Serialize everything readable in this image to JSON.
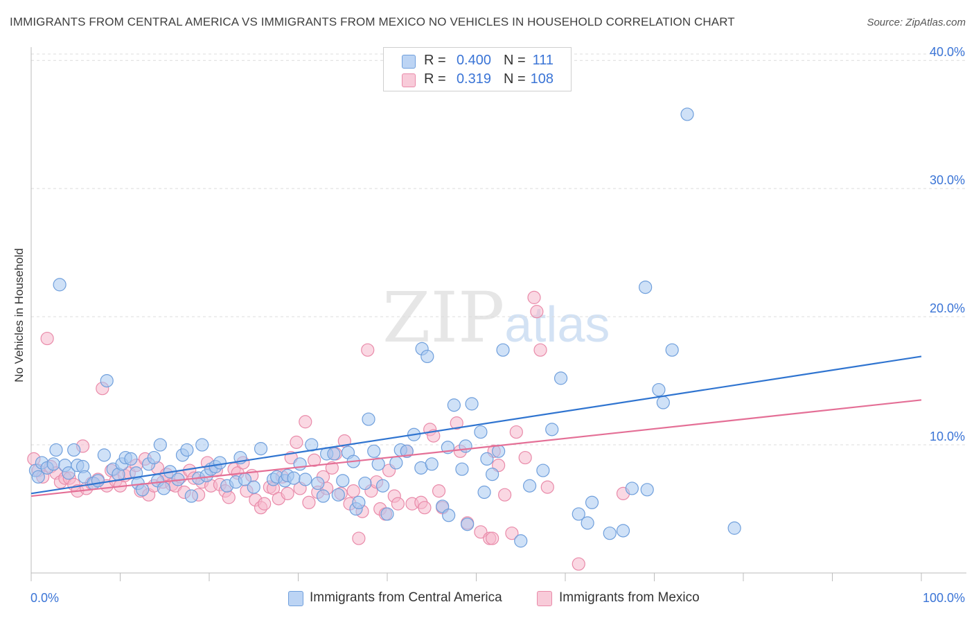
{
  "title": "IMMIGRANTS FROM CENTRAL AMERICA VS IMMIGRANTS FROM MEXICO NO VEHICLES IN HOUSEHOLD CORRELATION CHART",
  "source": "Source: ZipAtlas.com",
  "watermark": {
    "zip": "ZIP",
    "atlas": "atlas"
  },
  "legend_top": {
    "rows": [
      {
        "r_label": "R =",
        "r_value": "0.400",
        "n_label": "N =",
        "n_value": "111"
      },
      {
        "r_label": "R =",
        "r_value": "0.319",
        "n_label": "N =",
        "n_value": "108"
      }
    ]
  },
  "legend_bottom": [
    "Immigrants from Central America",
    "Immigrants from Mexico"
  ],
  "colors": {
    "blue_fill": "#a8c8f0",
    "blue_stroke": "#6f9fdc",
    "blue_line": "#2f74d0",
    "pink_fill": "#f5b8cc",
    "pink_stroke": "#e98aa9",
    "pink_line": "#e46f96",
    "axis_text": "#3a74d6",
    "grid": "#dcdcdc"
  },
  "chart_data": {
    "type": "scatter",
    "xlabel": "",
    "ylabel": "No Vehicles in Household",
    "x_tick_labels": [
      "0.0%",
      "100.0%"
    ],
    "y_tick_labels": [
      "10.0%",
      "20.0%",
      "30.0%",
      "40.0%"
    ],
    "xlim": [
      0,
      100
    ],
    "ylim": [
      0,
      40.5
    ],
    "y_ticks": [
      10,
      20,
      30,
      40
    ],
    "grid": true,
    "legend_placement": "top-center",
    "series": [
      {
        "name": "Immigrants from Central America",
        "r": 0.4,
        "n": 111,
        "trend": {
          "x": [
            0,
            100
          ],
          "y": [
            6.2,
            16.9
          ]
        },
        "points": [
          [
            0.5,
            8.0
          ],
          [
            0.8,
            7.5
          ],
          [
            1.2,
            8.6
          ],
          [
            1.8,
            8.2
          ],
          [
            2.5,
            8.5
          ],
          [
            2.8,
            9.6
          ],
          [
            3.2,
            22.5
          ],
          [
            3.8,
            8.4
          ],
          [
            4.2,
            7.8
          ],
          [
            4.8,
            9.6
          ],
          [
            5.2,
            8.4
          ],
          [
            5.8,
            8.3
          ],
          [
            6.0,
            7.5
          ],
          [
            7.0,
            7.0
          ],
          [
            7.5,
            7.2
          ],
          [
            8.2,
            9.2
          ],
          [
            8.5,
            15.0
          ],
          [
            9.2,
            8.1
          ],
          [
            9.8,
            7.7
          ],
          [
            10.2,
            8.5
          ],
          [
            10.6,
            9.0
          ],
          [
            11.2,
            8.9
          ],
          [
            11.8,
            7.8
          ],
          [
            12.0,
            7.0
          ],
          [
            12.5,
            6.5
          ],
          [
            13.2,
            8.5
          ],
          [
            13.8,
            9.0
          ],
          [
            14.2,
            7.2
          ],
          [
            14.5,
            10.0
          ],
          [
            14.9,
            6.6
          ],
          [
            15.6,
            7.9
          ],
          [
            16.5,
            7.3
          ],
          [
            17.0,
            9.2
          ],
          [
            17.5,
            9.6
          ],
          [
            18.0,
            6.0
          ],
          [
            18.8,
            7.4
          ],
          [
            19.2,
            10.0
          ],
          [
            19.7,
            7.6
          ],
          [
            20.2,
            8.1
          ],
          [
            20.7,
            8.3
          ],
          [
            21.2,
            8.6
          ],
          [
            22.0,
            6.8
          ],
          [
            23.0,
            7.1
          ],
          [
            23.5,
            9.0
          ],
          [
            24.0,
            7.3
          ],
          [
            25.0,
            6.7
          ],
          [
            25.8,
            9.7
          ],
          [
            27.2,
            7.3
          ],
          [
            27.6,
            7.5
          ],
          [
            28.5,
            7.2
          ],
          [
            28.8,
            7.6
          ],
          [
            29.5,
            7.4
          ],
          [
            30.2,
            8.5
          ],
          [
            30.8,
            7.3
          ],
          [
            31.5,
            10.0
          ],
          [
            32.2,
            7.0
          ],
          [
            32.8,
            6.0
          ],
          [
            33.2,
            9.3
          ],
          [
            34.0,
            9.3
          ],
          [
            34.5,
            6.1
          ],
          [
            35.0,
            7.2
          ],
          [
            35.6,
            9.4
          ],
          [
            36.2,
            8.7
          ],
          [
            36.5,
            5.0
          ],
          [
            36.8,
            5.5
          ],
          [
            37.5,
            7.0
          ],
          [
            37.9,
            12.0
          ],
          [
            38.5,
            9.5
          ],
          [
            39.0,
            8.5
          ],
          [
            39.5,
            6.8
          ],
          [
            40.0,
            4.6
          ],
          [
            41.0,
            8.6
          ],
          [
            41.5,
            9.6
          ],
          [
            42.2,
            9.5
          ],
          [
            43.0,
            10.8
          ],
          [
            43.8,
            8.2
          ],
          [
            43.9,
            17.5
          ],
          [
            44.5,
            16.9
          ],
          [
            45.0,
            8.5
          ],
          [
            46.2,
            5.2
          ],
          [
            46.8,
            9.8
          ],
          [
            46.9,
            4.5
          ],
          [
            47.5,
            13.1
          ],
          [
            48.4,
            8.1
          ],
          [
            48.8,
            9.9
          ],
          [
            49.0,
            3.8
          ],
          [
            49.5,
            13.2
          ],
          [
            50.5,
            11.0
          ],
          [
            50.9,
            6.3
          ],
          [
            51.2,
            8.9
          ],
          [
            51.8,
            7.7
          ],
          [
            52.5,
            9.5
          ],
          [
            53.0,
            17.4
          ],
          [
            55.0,
            2.5
          ],
          [
            56.0,
            6.8
          ],
          [
            57.5,
            8.0
          ],
          [
            58.5,
            11.2
          ],
          [
            59.5,
            15.2
          ],
          [
            61.5,
            4.6
          ],
          [
            62.5,
            3.9
          ],
          [
            63.0,
            5.5
          ],
          [
            65.0,
            3.1
          ],
          [
            66.5,
            3.3
          ],
          [
            67.5,
            6.6
          ],
          [
            69.0,
            22.3
          ],
          [
            69.2,
            6.5
          ],
          [
            70.5,
            14.3
          ],
          [
            71.0,
            13.3
          ],
          [
            72.0,
            17.4
          ],
          [
            73.7,
            35.8
          ],
          [
            79.0,
            3.5
          ]
        ]
      },
      {
        "name": "Immigrants from Mexico",
        "r": 0.319,
        "n": 108,
        "trend": {
          "x": [
            0,
            100
          ],
          "y": [
            6.0,
            13.5
          ]
        },
        "points": [
          [
            0.3,
            8.9
          ],
          [
            0.8,
            8.0
          ],
          [
            1.3,
            7.5
          ],
          [
            1.8,
            18.3
          ],
          [
            2.2,
            8.3
          ],
          [
            2.8,
            7.8
          ],
          [
            3.3,
            7.1
          ],
          [
            3.8,
            7.4
          ],
          [
            4.3,
            7.4
          ],
          [
            4.8,
            6.9
          ],
          [
            5.2,
            6.4
          ],
          [
            5.8,
            9.9
          ],
          [
            6.2,
            6.6
          ],
          [
            6.8,
            7.0
          ],
          [
            7.5,
            7.3
          ],
          [
            8.0,
            14.4
          ],
          [
            8.5,
            6.8
          ],
          [
            9.0,
            8.0
          ],
          [
            9.5,
            7.2
          ],
          [
            10.0,
            6.8
          ],
          [
            10.5,
            7.6
          ],
          [
            11.0,
            7.8
          ],
          [
            11.8,
            8.4
          ],
          [
            12.3,
            6.4
          ],
          [
            12.8,
            8.9
          ],
          [
            13.2,
            6.1
          ],
          [
            13.8,
            6.8
          ],
          [
            14.2,
            8.2
          ],
          [
            14.8,
            7.1
          ],
          [
            15.2,
            7.7
          ],
          [
            15.8,
            6.9
          ],
          [
            16.2,
            6.8
          ],
          [
            16.8,
            7.5
          ],
          [
            17.2,
            6.3
          ],
          [
            17.8,
            8.0
          ],
          [
            18.3,
            7.4
          ],
          [
            18.8,
            6.1
          ],
          [
            19.2,
            7.1
          ],
          [
            19.8,
            8.6
          ],
          [
            20.2,
            6.8
          ],
          [
            20.8,
            8.0
          ],
          [
            21.2,
            6.9
          ],
          [
            21.8,
            6.4
          ],
          [
            22.2,
            5.9
          ],
          [
            22.8,
            8.1
          ],
          [
            23.2,
            7.8
          ],
          [
            23.8,
            8.6
          ],
          [
            24.2,
            6.4
          ],
          [
            24.8,
            7.6
          ],
          [
            25.2,
            5.7
          ],
          [
            25.8,
            5.1
          ],
          [
            26.2,
            5.4
          ],
          [
            26.8,
            6.7
          ],
          [
            27.2,
            6.6
          ],
          [
            27.8,
            5.8
          ],
          [
            28.2,
            7.5
          ],
          [
            28.8,
            6.2
          ],
          [
            29.2,
            9.0
          ],
          [
            29.8,
            10.2
          ],
          [
            30.2,
            6.6
          ],
          [
            30.8,
            11.8
          ],
          [
            31.2,
            5.5
          ],
          [
            31.8,
            8.8
          ],
          [
            32.2,
            6.3
          ],
          [
            32.8,
            7.5
          ],
          [
            33.2,
            6.6
          ],
          [
            33.8,
            8.2
          ],
          [
            34.2,
            9.3
          ],
          [
            34.8,
            6.2
          ],
          [
            35.2,
            10.3
          ],
          [
            35.8,
            5.4
          ],
          [
            36.2,
            6.4
          ],
          [
            36.8,
            2.7
          ],
          [
            37.2,
            4.8
          ],
          [
            37.8,
            17.4
          ],
          [
            38.2,
            6.4
          ],
          [
            38.8,
            7.1
          ],
          [
            39.2,
            5.0
          ],
          [
            39.8,
            4.6
          ],
          [
            40.2,
            8.0
          ],
          [
            40.8,
            6.0
          ],
          [
            41.2,
            5.4
          ],
          [
            42.2,
            9.5
          ],
          [
            42.8,
            5.4
          ],
          [
            43.8,
            5.5
          ],
          [
            44.2,
            5.1
          ],
          [
            44.8,
            11.2
          ],
          [
            45.2,
            10.7
          ],
          [
            45.8,
            6.4
          ],
          [
            46.2,
            5.1
          ],
          [
            47.8,
            11.7
          ],
          [
            48.2,
            9.5
          ],
          [
            49.0,
            3.9
          ],
          [
            50.5,
            3.2
          ],
          [
            51.5,
            2.7
          ],
          [
            51.8,
            2.7
          ],
          [
            52.0,
            9.5
          ],
          [
            52.5,
            8.4
          ],
          [
            53.2,
            6.1
          ],
          [
            54.0,
            3.1
          ],
          [
            54.5,
            11.0
          ],
          [
            55.5,
            9.0
          ],
          [
            56.5,
            21.5
          ],
          [
            56.8,
            20.4
          ],
          [
            57.2,
            17.4
          ],
          [
            58.0,
            6.7
          ],
          [
            61.5,
            0.7
          ],
          [
            66.5,
            6.2
          ]
        ]
      }
    ]
  }
}
